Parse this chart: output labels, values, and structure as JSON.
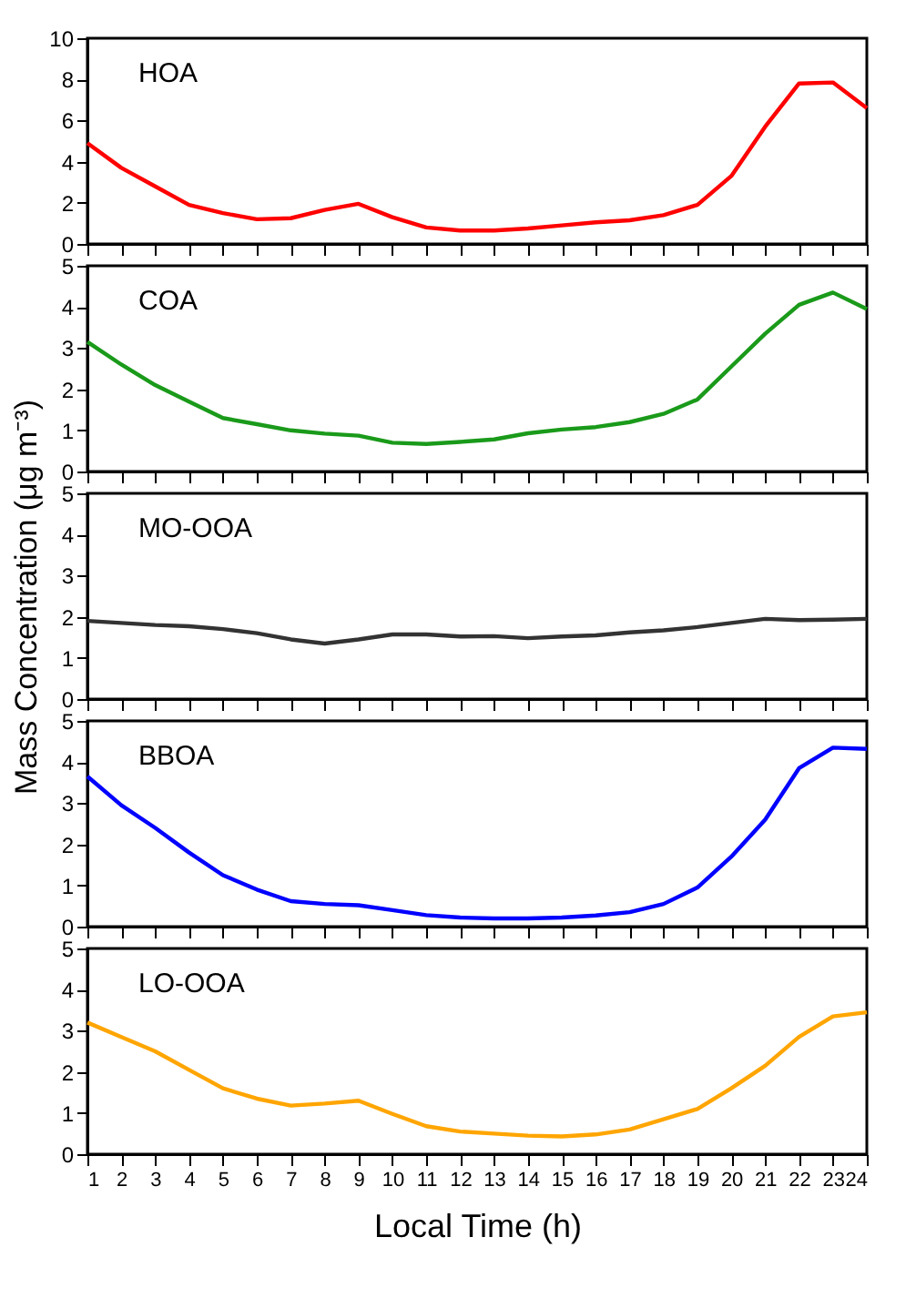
{
  "chart_data": [
    {
      "type": "line",
      "x": [
        1,
        2,
        3,
        4,
        5,
        6,
        7,
        8,
        9,
        10,
        11,
        12,
        13,
        14,
        15,
        16,
        17,
        18,
        19,
        20,
        21,
        22,
        23,
        24
      ],
      "xlim": [
        1,
        24
      ],
      "xticks": [
        1,
        2,
        3,
        4,
        5,
        6,
        7,
        8,
        9,
        10,
        11,
        12,
        13,
        14,
        15,
        16,
        17,
        18,
        19,
        20,
        21,
        22,
        23,
        24
      ],
      "ylim": [
        0,
        10
      ],
      "yticks": [
        0,
        2,
        4,
        6,
        8,
        10
      ],
      "tick_labels": "y",
      "grid": false,
      "annotations": [
        "HOA"
      ],
      "series": [
        {
          "color": "#ff0000",
          "values": [
            4.9,
            3.7,
            2.8,
            1.9,
            1.5,
            1.2,
            1.25,
            1.65,
            1.95,
            1.3,
            0.8,
            0.65,
            0.65,
            0.75,
            0.9,
            1.05,
            1.15,
            1.4,
            1.9,
            3.3,
            5.7,
            7.8,
            7.85,
            6.6
          ]
        }
      ]
    },
    {
      "type": "line",
      "x": [
        1,
        2,
        3,
        4,
        5,
        6,
        7,
        8,
        9,
        10,
        11,
        12,
        13,
        14,
        15,
        16,
        17,
        18,
        19,
        20,
        21,
        22,
        23,
        24
      ],
      "xlim": [
        1,
        24
      ],
      "xticks": [
        1,
        2,
        3,
        4,
        5,
        6,
        7,
        8,
        9,
        10,
        11,
        12,
        13,
        14,
        15,
        16,
        17,
        18,
        19,
        20,
        21,
        22,
        23,
        24
      ],
      "ylim": [
        0,
        5
      ],
      "yticks": [
        0,
        1,
        2,
        3,
        4,
        5
      ],
      "tick_labels": "y",
      "grid": false,
      "annotations": [
        "COA"
      ],
      "series": [
        {
          "color": "#1a9a1a",
          "values": [
            3.15,
            2.6,
            2.1,
            1.7,
            1.3,
            1.15,
            1.0,
            0.92,
            0.87,
            0.7,
            0.67,
            0.72,
            0.78,
            0.93,
            1.02,
            1.08,
            1.2,
            1.4,
            1.75,
            2.55,
            3.35,
            4.05,
            4.35,
            3.95
          ]
        }
      ]
    },
    {
      "type": "line",
      "ylabel": "Mass Concentration (μg m⁻³)",
      "x": [
        1,
        2,
        3,
        4,
        5,
        6,
        7,
        8,
        9,
        10,
        11,
        12,
        13,
        14,
        15,
        16,
        17,
        18,
        19,
        20,
        21,
        22,
        23,
        24
      ],
      "xlim": [
        1,
        24
      ],
      "xticks": [
        1,
        2,
        3,
        4,
        5,
        6,
        7,
        8,
        9,
        10,
        11,
        12,
        13,
        14,
        15,
        16,
        17,
        18,
        19,
        20,
        21,
        22,
        23,
        24
      ],
      "ylim": [
        0,
        5
      ],
      "yticks": [
        0,
        1,
        2,
        3,
        4,
        5
      ],
      "tick_labels": "y",
      "grid": false,
      "annotations": [
        "MO-OOA"
      ],
      "series": [
        {
          "color": "#333333",
          "values": [
            1.9,
            1.85,
            1.8,
            1.77,
            1.7,
            1.6,
            1.45,
            1.35,
            1.45,
            1.57,
            1.57,
            1.52,
            1.53,
            1.48,
            1.52,
            1.55,
            1.62,
            1.67,
            1.75,
            1.85,
            1.95,
            1.92,
            1.93,
            1.95
          ]
        }
      ]
    },
    {
      "type": "line",
      "x": [
        1,
        2,
        3,
        4,
        5,
        6,
        7,
        8,
        9,
        10,
        11,
        12,
        13,
        14,
        15,
        16,
        17,
        18,
        19,
        20,
        21,
        22,
        23,
        24
      ],
      "xlim": [
        1,
        24
      ],
      "xticks": [
        1,
        2,
        3,
        4,
        5,
        6,
        7,
        8,
        9,
        10,
        11,
        12,
        13,
        14,
        15,
        16,
        17,
        18,
        19,
        20,
        21,
        22,
        23,
        24
      ],
      "ylim": [
        0,
        5
      ],
      "yticks": [
        0,
        1,
        2,
        3,
        4,
        5
      ],
      "tick_labels": "y",
      "grid": false,
      "annotations": [
        "BBOA"
      ],
      "series": [
        {
          "color": "#0000ff",
          "values": [
            3.65,
            2.95,
            2.4,
            1.8,
            1.25,
            0.9,
            0.62,
            0.55,
            0.52,
            0.4,
            0.28,
            0.22,
            0.2,
            0.2,
            0.22,
            0.27,
            0.35,
            0.55,
            0.95,
            1.7,
            2.6,
            3.85,
            4.35,
            4.32
          ]
        }
      ]
    },
    {
      "type": "line",
      "xlabel": "Local Time (h)",
      "x": [
        1,
        2,
        3,
        4,
        5,
        6,
        7,
        8,
        9,
        10,
        11,
        12,
        13,
        14,
        15,
        16,
        17,
        18,
        19,
        20,
        21,
        22,
        23,
        24
      ],
      "xlim": [
        1,
        24
      ],
      "xticks": [
        1,
        2,
        3,
        4,
        5,
        6,
        7,
        8,
        9,
        10,
        11,
        12,
        13,
        14,
        15,
        16,
        17,
        18,
        19,
        20,
        21,
        22,
        23,
        24
      ],
      "ylim": [
        0,
        5
      ],
      "yticks": [
        0,
        1,
        2,
        3,
        4,
        5
      ],
      "grid": false,
      "annotations": [
        "LO-OOA"
      ],
      "series": [
        {
          "color": "#ffa500",
          "values": [
            3.2,
            2.85,
            2.5,
            2.05,
            1.6,
            1.35,
            1.18,
            1.23,
            1.3,
            0.98,
            0.68,
            0.55,
            0.5,
            0.45,
            0.43,
            0.48,
            0.6,
            0.85,
            1.1,
            1.6,
            2.15,
            2.85,
            3.35,
            3.45
          ]
        }
      ]
    }
  ]
}
